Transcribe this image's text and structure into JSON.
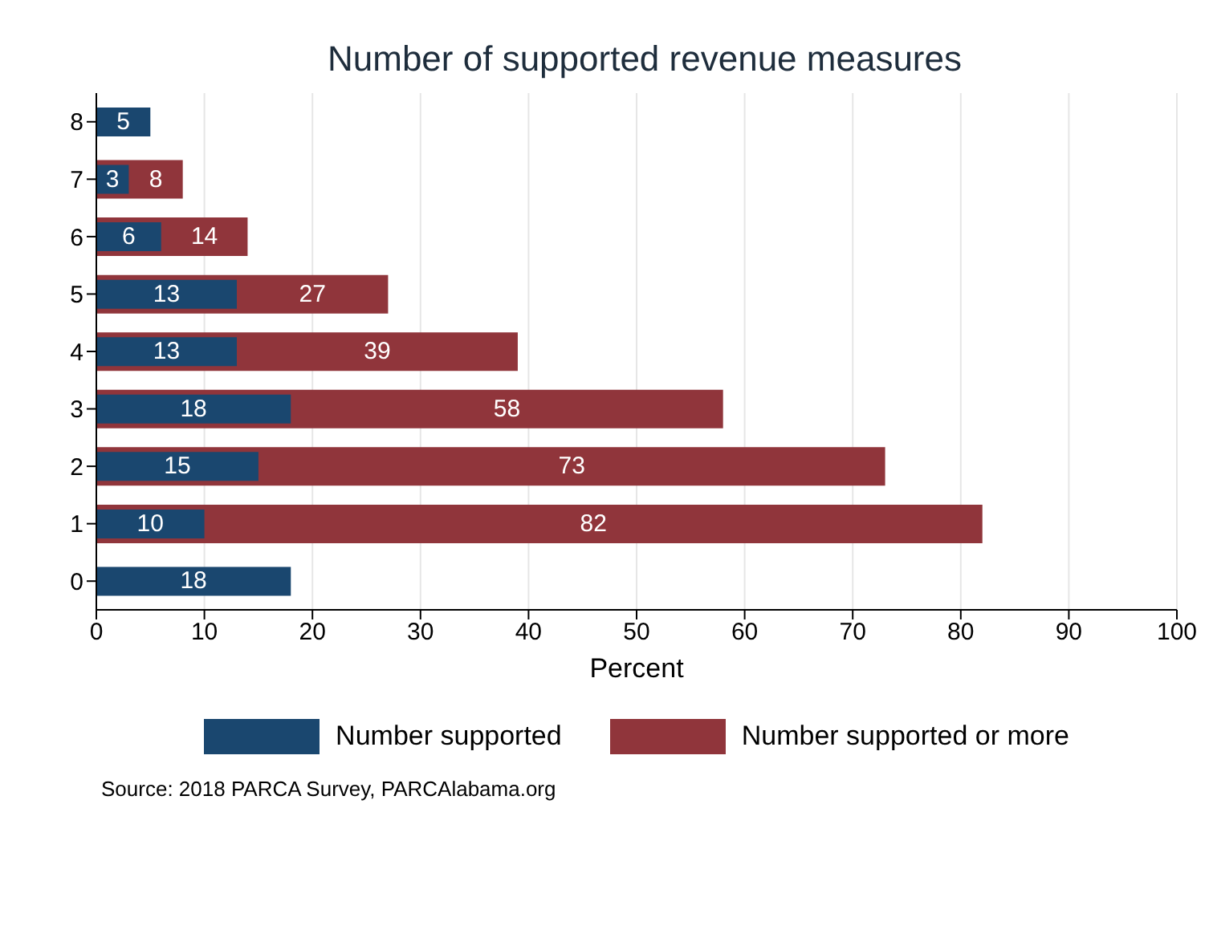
{
  "chart_data": {
    "type": "bar",
    "orientation": "horizontal",
    "title": "Number of supported revenue measures",
    "xlabel": "Percent",
    "categories": [
      "8",
      "7",
      "6",
      "5",
      "4",
      "3",
      "2",
      "1",
      "0"
    ],
    "series": [
      {
        "name": "Number supported",
        "color": "#1a476f",
        "values": [
          5,
          3,
          6,
          13,
          13,
          18,
          15,
          10,
          18
        ]
      },
      {
        "name": "Number supported or more",
        "color": "#90353b",
        "values": [
          null,
          8,
          14,
          27,
          39,
          58,
          73,
          82,
          null
        ]
      }
    ],
    "xlim": [
      0,
      100
    ],
    "xticks": [
      0,
      10,
      20,
      30,
      40,
      50,
      60,
      70,
      80,
      90,
      100
    ],
    "grid": "x",
    "legend": "bottom",
    "data_labels": true,
    "annotations": [
      "Source: 2018 PARCA Survey, PARCAlabama.org"
    ]
  }
}
